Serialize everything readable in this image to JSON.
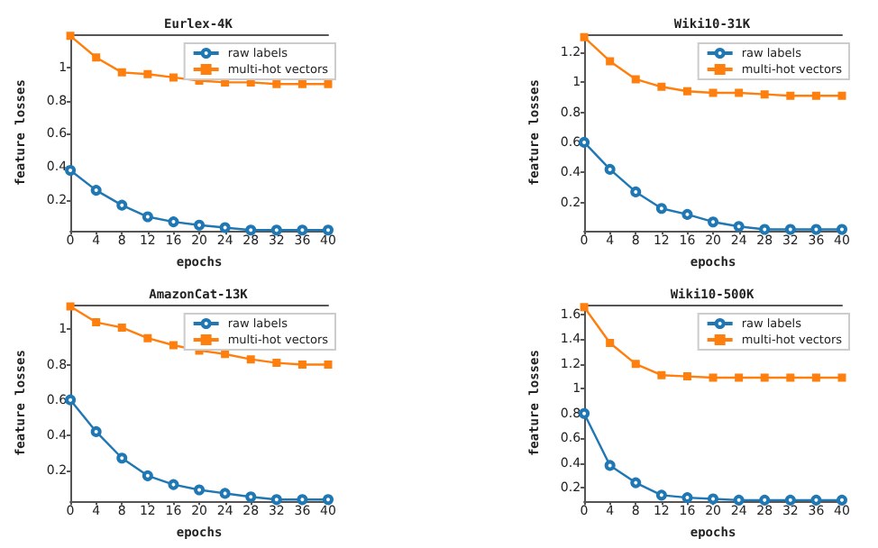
{
  "chart_data": [
    {
      "type": "line",
      "title": "Eurlex-4K",
      "xlabel": "epochs",
      "ylabel": "feature losses",
      "x": [
        0,
        4,
        8,
        12,
        16,
        20,
        24,
        28,
        32,
        36,
        40
      ],
      "xlim": [
        0,
        40
      ],
      "xticks": [
        0,
        4,
        8,
        12,
        16,
        20,
        24,
        28,
        32,
        36,
        40
      ],
      "ylim": [
        0.015,
        1.2
      ],
      "yticks": [
        0.2,
        0.4,
        0.6,
        0.8,
        1.0
      ],
      "grid": false,
      "legend": "top right",
      "series": [
        {
          "name": "raw labels",
          "color": "#1f77b4",
          "marker": "circle",
          "values": [
            0.38,
            0.26,
            0.17,
            0.1,
            0.07,
            0.05,
            0.035,
            0.02,
            0.02,
            0.02,
            0.02
          ]
        },
        {
          "name": "multi-hot vectors",
          "color": "#ff7f0e",
          "marker": "square",
          "values": [
            1.19,
            1.06,
            0.97,
            0.96,
            0.94,
            0.92,
            0.91,
            0.91,
            0.9,
            0.9,
            0.9
          ]
        }
      ]
    },
    {
      "type": "line",
      "title": "Wiki10-31K",
      "xlabel": "epochs",
      "ylabel": "feature losses",
      "x": [
        0,
        4,
        8,
        12,
        16,
        20,
        24,
        28,
        32,
        36,
        40
      ],
      "xlim": [
        0,
        40
      ],
      "xticks": [
        0,
        4,
        8,
        12,
        16,
        20,
        24,
        28,
        32,
        36,
        40
      ],
      "ylim": [
        0.01,
        1.32
      ],
      "yticks": [
        0.2,
        0.4,
        0.6,
        0.8,
        1.0,
        1.2
      ],
      "grid": false,
      "legend": "top right",
      "series": [
        {
          "name": "raw labels",
          "color": "#1f77b4",
          "marker": "circle",
          "values": [
            0.6,
            0.42,
            0.27,
            0.16,
            0.12,
            0.07,
            0.04,
            0.02,
            0.02,
            0.02,
            0.02
          ]
        },
        {
          "name": "multi-hot vectors",
          "color": "#ff7f0e",
          "marker": "square",
          "values": [
            1.3,
            1.14,
            1.02,
            0.97,
            0.94,
            0.93,
            0.93,
            0.92,
            0.91,
            0.91,
            0.91
          ]
        }
      ]
    },
    {
      "type": "line",
      "title": "AmazonCat-13K",
      "xlabel": "epochs",
      "ylabel": "feature losses",
      "x": [
        0,
        4,
        8,
        12,
        16,
        20,
        24,
        28,
        32,
        36,
        40
      ],
      "xlim": [
        0,
        40
      ],
      "xticks": [
        0,
        4,
        8,
        12,
        16,
        20,
        24,
        28,
        32,
        36,
        40
      ],
      "ylim": [
        0.025,
        1.14
      ],
      "yticks": [
        0.2,
        0.4,
        0.6,
        0.8,
        1.0
      ],
      "grid": false,
      "legend": "top right",
      "series": [
        {
          "name": "raw labels",
          "color": "#1f77b4",
          "marker": "circle",
          "values": [
            0.6,
            0.42,
            0.27,
            0.17,
            0.12,
            0.09,
            0.07,
            0.05,
            0.035,
            0.035,
            0.035
          ]
        },
        {
          "name": "multi-hot vectors",
          "color": "#ff7f0e",
          "marker": "square",
          "values": [
            1.13,
            1.04,
            1.01,
            0.95,
            0.91,
            0.88,
            0.86,
            0.83,
            0.81,
            0.8,
            0.8
          ]
        }
      ]
    },
    {
      "type": "line",
      "title": "Wiki10-500K",
      "xlabel": "epochs",
      "ylabel": "feature losses",
      "x": [
        0,
        4,
        8,
        12,
        16,
        20,
        24,
        28,
        32,
        36,
        40
      ],
      "xlim": [
        0,
        40
      ],
      "xticks": [
        0,
        4,
        8,
        12,
        16,
        20,
        24,
        28,
        32,
        36,
        40
      ],
      "ylim": [
        0.09,
        1.68
      ],
      "yticks": [
        0.2,
        0.4,
        0.6,
        0.8,
        1.0,
        1.2,
        1.4,
        1.6
      ],
      "grid": false,
      "legend": "top right",
      "series": [
        {
          "name": "raw labels",
          "color": "#1f77b4",
          "marker": "circle",
          "values": [
            0.8,
            0.38,
            0.24,
            0.14,
            0.12,
            0.11,
            0.1,
            0.1,
            0.1,
            0.1,
            0.1
          ]
        },
        {
          "name": "multi-hot vectors",
          "color": "#ff7f0e",
          "marker": "square",
          "values": [
            1.66,
            1.37,
            1.2,
            1.11,
            1.1,
            1.09,
            1.09,
            1.09,
            1.09,
            1.09,
            1.09
          ]
        }
      ]
    }
  ]
}
